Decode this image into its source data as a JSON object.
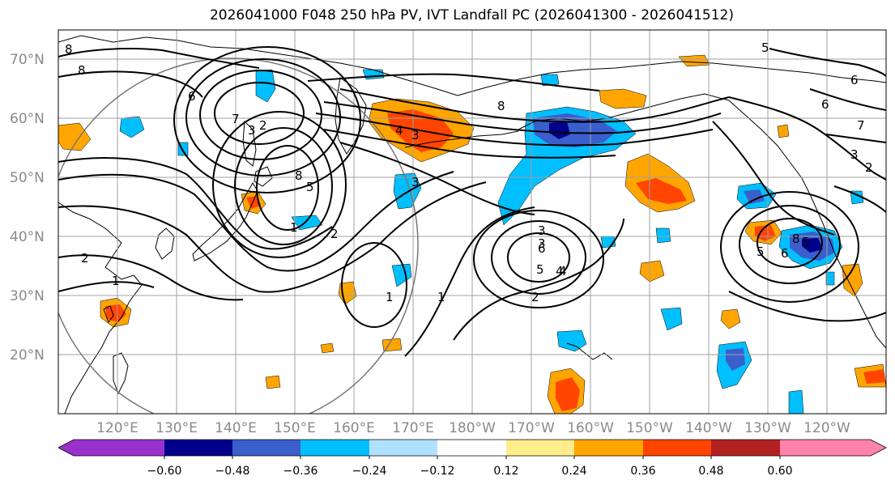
{
  "title": "2026041000 F048 250 hPa PV, IVT Landfall PC (2026041300 - 2026041512)",
  "lat_labels": [
    "70°N",
    "60°N",
    "50°N",
    "40°N",
    "30°N",
    "20°N"
  ],
  "lon_labels": [
    "120°E",
    "130°E",
    "140°E",
    "150°E",
    "160°E",
    "170°E",
    "180°W",
    "170°W",
    "160°W",
    "150°W",
    "140°W",
    "130°W",
    "120°W"
  ],
  "colorbar": {
    "colors": [
      "#9932cc",
      "#00008b",
      "#3a5fcd",
      "#00bfff",
      "#b0e2ff",
      "#ffffff",
      "#ffec8b",
      "#ffa500",
      "#ff4500",
      "#b22222",
      "#ff82ab"
    ],
    "tick_labels": [
      "−0.60",
      "−0.48",
      "−0.36",
      "−0.24",
      "−0.12",
      "0.12",
      "0.24",
      "0.36",
      "0.48",
      "0.60"
    ]
  },
  "contour_labels": [
    "8",
    "8",
    "6",
    "7",
    "3",
    "2",
    "4",
    "3",
    "8",
    "5",
    "1",
    "2",
    "2",
    "1",
    "3",
    "4",
    "3",
    "8",
    "3",
    "6",
    "5",
    "4",
    "2",
    "1",
    "1",
    "5",
    "6",
    "6",
    "7",
    "3",
    "2",
    "5",
    "6",
    "5",
    "8"
  ]
}
